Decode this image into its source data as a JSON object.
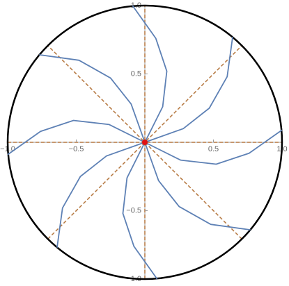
{
  "chart_data": {
    "type": "line",
    "color": "#5e81b5",
    "series": [
      {
        "x": [
          0,
          0.26,
          0.52,
          0.76,
          1.0
        ],
        "y": [
          0,
          -0.13,
          -0.16,
          -0.08,
          0.09
        ]
      },
      {
        "x": [
          0,
          0.28,
          0.47,
          0.6,
          0.64
        ],
        "y": [
          0,
          0.1,
          0.25,
          0.48,
          0.77
        ]
      },
      {
        "x": [
          0,
          0.13,
          0.16,
          0.08,
          -0.09
        ],
        "y": [
          0,
          0.26,
          0.52,
          0.76,
          1.0
        ]
      },
      {
        "x": [
          0,
          -0.1,
          -0.25,
          -0.48,
          -0.77
        ],
        "y": [
          0,
          0.28,
          0.47,
          0.6,
          0.64
        ]
      },
      {
        "x": [
          0,
          -0.26,
          -0.52,
          -0.76,
          -1.0
        ],
        "y": [
          0,
          0.13,
          0.16,
          0.08,
          -0.09
        ]
      },
      {
        "x": [
          0,
          -0.28,
          -0.47,
          -0.6,
          -0.64
        ],
        "y": [
          0,
          -0.1,
          -0.25,
          -0.48,
          -0.77
        ]
      },
      {
        "x": [
          0,
          -0.13,
          -0.16,
          -0.08,
          0.09
        ],
        "y": [
          0,
          -0.26,
          -0.52,
          -0.76,
          -1.0
        ]
      },
      {
        "x": [
          0,
          0.1,
          0.25,
          0.48,
          0.77
        ],
        "y": [
          0,
          -0.28,
          -0.47,
          -0.6,
          -0.64
        ]
      }
    ],
    "point": {
      "x": 0,
      "y": 0,
      "color": "#e01010"
    },
    "boundary_color": "#000000",
    "reference_color": "#b5773f",
    "xlim": [
      -1,
      1
    ],
    "ylim": [
      -1,
      1
    ],
    "xticks": [
      {
        "value": -1,
        "label": "−1.0"
      },
      {
        "value": -0.5,
        "label": "−0.5"
      },
      0.5,
      {
        "value": 1,
        "label": "1.0"
      }
    ],
    "yticks": [
      {
        "value": -1,
        "label": "−1.0"
      },
      {
        "value": -0.5,
        "label": "−0.5"
      },
      0.5,
      {
        "value": 1,
        "label": "1.0"
      }
    ]
  }
}
